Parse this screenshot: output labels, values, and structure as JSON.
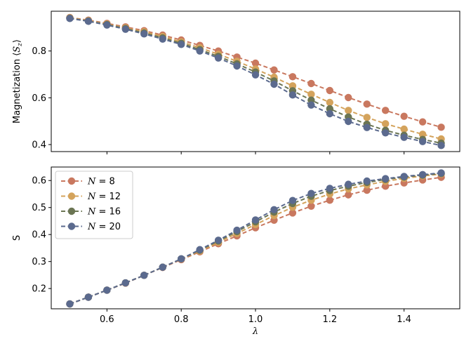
{
  "chart_data": [
    {
      "type": "line",
      "ylabel": "Magnetization ⟨S_z⟩",
      "ylabel_prefix": "Magnetization ⟨",
      "ylabel_var": "S",
      "ylabel_sub": "z",
      "ylabel_suffix": "⟩",
      "xlabel": "",
      "xlim": [
        0.45,
        1.55
      ],
      "ylim": [
        0.37,
        0.97
      ],
      "xticks": [
        0.6,
        0.8,
        1.0,
        1.2,
        1.4
      ],
      "xtick_labels_visible": false,
      "yticks": [
        0.4,
        0.6,
        0.8
      ],
      "ytick_labels": [
        "0.4",
        "0.6",
        "0.8"
      ],
      "x": [
        0.5,
        0.55,
        0.6,
        0.65,
        0.7,
        0.75,
        0.8,
        0.85,
        0.9,
        0.95,
        1.0,
        1.05,
        1.1,
        1.15,
        1.2,
        1.25,
        1.3,
        1.35,
        1.4,
        1.45,
        1.5
      ],
      "series": [
        {
          "name": "N = 8",
          "color": "#c9785f",
          "values": [
            0.943,
            0.932,
            0.918,
            0.903,
            0.887,
            0.868,
            0.847,
            0.824,
            0.8,
            0.774,
            0.748,
            0.719,
            0.69,
            0.661,
            0.631,
            0.601,
            0.573,
            0.546,
            0.521,
            0.497,
            0.474
          ]
        },
        {
          "name": "N = 12",
          "color": "#d4a35c",
          "values": [
            0.942,
            0.93,
            0.915,
            0.899,
            0.882,
            0.862,
            0.839,
            0.814,
            0.786,
            0.756,
            0.723,
            0.688,
            0.651,
            0.615,
            0.58,
            0.546,
            0.516,
            0.489,
            0.466,
            0.444,
            0.424
          ]
        },
        {
          "name": "N = 16",
          "color": "#6b7553",
          "values": [
            0.94,
            0.928,
            0.913,
            0.896,
            0.877,
            0.856,
            0.833,
            0.806,
            0.777,
            0.745,
            0.71,
            0.672,
            0.63,
            0.59,
            0.553,
            0.518,
            0.487,
            0.461,
            0.44,
            0.422,
            0.406
          ]
        },
        {
          "name": "N = 20",
          "color": "#5b6a8e",
          "values": [
            0.939,
            0.927,
            0.911,
            0.893,
            0.873,
            0.851,
            0.828,
            0.8,
            0.77,
            0.736,
            0.698,
            0.658,
            0.612,
            0.569,
            0.532,
            0.499,
            0.473,
            0.45,
            0.431,
            0.413,
            0.396
          ]
        }
      ]
    },
    {
      "type": "line",
      "ylabel": "S",
      "xlabel": "λ",
      "xlim": [
        0.45,
        1.55
      ],
      "ylim": [
        0.125,
        0.65
      ],
      "xticks": [
        0.6,
        0.8,
        1.0,
        1.2,
        1.4
      ],
      "xtick_labels": [
        "0.6",
        "0.8",
        "1.0",
        "1.2",
        "1.4"
      ],
      "yticks": [
        0.2,
        0.3,
        0.4,
        0.5,
        0.6
      ],
      "ytick_labels": [
        "0.2",
        "0.3",
        "0.4",
        "0.5",
        "0.6"
      ],
      "legend_position": "upper-left",
      "x": [
        0.5,
        0.55,
        0.6,
        0.65,
        0.7,
        0.75,
        0.8,
        0.85,
        0.9,
        0.95,
        1.0,
        1.05,
        1.1,
        1.15,
        1.2,
        1.25,
        1.3,
        1.35,
        1.4,
        1.45,
        1.5
      ],
      "series": [
        {
          "name": "N = 8",
          "label_var": "N",
          "label_num": "8",
          "color": "#c9785f",
          "values": [
            0.143,
            0.168,
            0.194,
            0.22,
            0.249,
            0.278,
            0.307,
            0.336,
            0.366,
            0.395,
            0.425,
            0.453,
            0.48,
            0.505,
            0.527,
            0.547,
            0.564,
            0.579,
            0.591,
            0.602,
            0.612
          ]
        },
        {
          "name": "N = 12",
          "label_var": "N",
          "label_num": "12",
          "color": "#d4a35c",
          "values": [
            0.143,
            0.168,
            0.194,
            0.221,
            0.249,
            0.279,
            0.309,
            0.339,
            0.371,
            0.404,
            0.437,
            0.47,
            0.501,
            0.527,
            0.55,
            0.569,
            0.584,
            0.597,
            0.608,
            0.617,
            0.624
          ]
        },
        {
          "name": "N = 16",
          "label_var": "N",
          "label_num": "16",
          "color": "#6b7553",
          "values": [
            0.143,
            0.168,
            0.194,
            0.221,
            0.249,
            0.279,
            0.31,
            0.342,
            0.376,
            0.411,
            0.447,
            0.483,
            0.515,
            0.542,
            0.563,
            0.579,
            0.593,
            0.604,
            0.613,
            0.62,
            0.626
          ]
        },
        {
          "name": "N = 20",
          "label_var": "N",
          "label_num": "20",
          "color": "#5b6a8e",
          "values": [
            0.143,
            0.168,
            0.194,
            0.221,
            0.249,
            0.279,
            0.31,
            0.344,
            0.379,
            0.416,
            0.454,
            0.492,
            0.526,
            0.552,
            0.571,
            0.586,
            0.598,
            0.607,
            0.615,
            0.622,
            0.628
          ]
        }
      ]
    }
  ]
}
